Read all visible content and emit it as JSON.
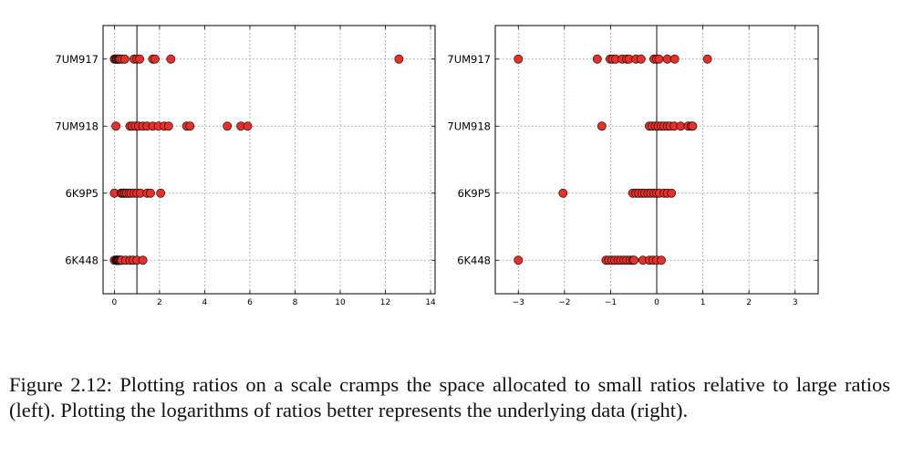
{
  "chart_data": [
    {
      "type": "scatter",
      "panel": "left",
      "xlim": [
        -0.5,
        14.2
      ],
      "xticks": [
        0,
        2,
        4,
        6,
        8,
        10,
        12,
        14
      ],
      "xtick_labels": [
        "0",
        "2",
        "4",
        "6",
        "8",
        "10",
        "12",
        "14"
      ],
      "reference_line_x": 1,
      "grid": true,
      "categories": [
        "7UM917",
        "7UM918",
        "6K9P5",
        "6K448"
      ],
      "series": [
        {
          "category": "7UM917",
          "x": [
            0.0,
            0.05,
            0.1,
            0.11,
            0.13,
            0.18,
            0.22,
            0.25,
            0.35,
            0.46,
            0.87,
            1.0,
            1.12,
            1.7,
            1.8,
            2.5,
            12.6
          ]
        },
        {
          "category": "7UM918",
          "x": [
            0.07,
            0.69,
            0.79,
            0.93,
            1.07,
            1.26,
            1.45,
            1.7,
            1.95,
            2.2,
            2.4,
            3.2,
            3.35,
            5.0,
            5.6,
            5.9
          ]
        },
        {
          "category": "6K9P5",
          "x": [
            0.0,
            0.3,
            0.35,
            0.41,
            0.48,
            0.55,
            0.65,
            0.74,
            0.87,
            1.0,
            1.15,
            1.45,
            1.6,
            2.05
          ]
        },
        {
          "category": "6K448",
          "x": [
            0.0,
            0.08,
            0.09,
            0.11,
            0.12,
            0.14,
            0.17,
            0.19,
            0.22,
            0.26,
            0.3,
            0.32,
            0.5,
            0.69,
            0.83,
            1.0,
            1.26
          ]
        }
      ],
      "marker_color": "#e8302a",
      "marker_edge": "#000000",
      "reference_line_color": "#333333"
    },
    {
      "type": "scatter",
      "panel": "right",
      "xlim": [
        -3.5,
        3.5
      ],
      "xticks": [
        -3,
        -2,
        -1,
        0,
        1,
        2,
        3
      ],
      "xtick_labels": [
        "−3",
        "−2",
        "−1",
        "0",
        "1",
        "2",
        "3"
      ],
      "reference_line_x": 0,
      "grid": true,
      "categories": [
        "7UM917",
        "7UM918",
        "6K9P5",
        "6K448"
      ],
      "series": [
        {
          "category": "7UM917",
          "x": [
            -3.0,
            -1.29,
            -1.01,
            -0.96,
            -0.89,
            -0.75,
            -0.65,
            -0.6,
            -0.45,
            -0.34,
            -0.06,
            0.0,
            0.05,
            0.23,
            0.39,
            1.1
          ]
        },
        {
          "category": "7UM918",
          "x": [
            -1.19,
            -0.16,
            -0.1,
            -0.03,
            0.03,
            0.1,
            0.16,
            0.23,
            0.29,
            0.38,
            0.52,
            0.68,
            0.75,
            0.78
          ]
        },
        {
          "category": "6K9P5",
          "x": [
            -2.03,
            -0.52,
            -0.45,
            -0.39,
            -0.32,
            -0.26,
            -0.19,
            -0.13,
            -0.06,
            0.0,
            0.06,
            0.16,
            0.23,
            0.32
          ]
        },
        {
          "category": "6K448",
          "x": [
            -3.0,
            -1.1,
            -1.04,
            -0.97,
            -0.91,
            -0.84,
            -0.78,
            -0.71,
            -0.65,
            -0.58,
            -0.52,
            -0.49,
            -0.3,
            -0.16,
            -0.08,
            0.0,
            0.1
          ]
        }
      ],
      "marker_color": "#e8302a",
      "marker_edge": "#000000",
      "reference_line_color": "#333333"
    }
  ],
  "caption": "Figure 2.12: Plotting ratios on a scale cramps the space allocated to small ratios relative to large ratios (left). Plotting the logarithms of ratios better represents the underlying data (right)."
}
